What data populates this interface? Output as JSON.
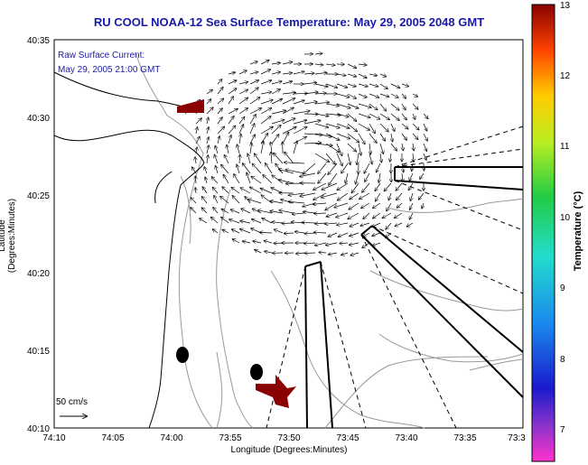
{
  "title": "RU COOL  NOAA-12  Sea Surface Temperature:  May 29, 2005 2048 GMT",
  "annotation": {
    "line1": "Raw Surface Current:",
    "line2": "May 29, 2005 21:00 GMT"
  },
  "axes": {
    "xlabel": "Longitude (Degrees:Minutes)",
    "ylabel": "Latitude (Degrees:Minutes)",
    "x_ticks": [
      "74:10",
      "74:05",
      "74:00",
      "73:55",
      "73:50",
      "73:45",
      "73:40",
      "73:35",
      "73:3"
    ],
    "y_ticks": [
      "40:35",
      "40:30",
      "40:25",
      "40:20",
      "40:15",
      "40:10"
    ]
  },
  "scale_label": "50 cm/s",
  "colorbar": {
    "label": "Temperature (°C)",
    "ticks": [
      "13",
      "12",
      "11",
      "10",
      "9",
      "8",
      "7"
    ]
  },
  "colors": {
    "title": "#1a1aa8",
    "land_marker": "#8b0000",
    "station": "#000000"
  }
}
